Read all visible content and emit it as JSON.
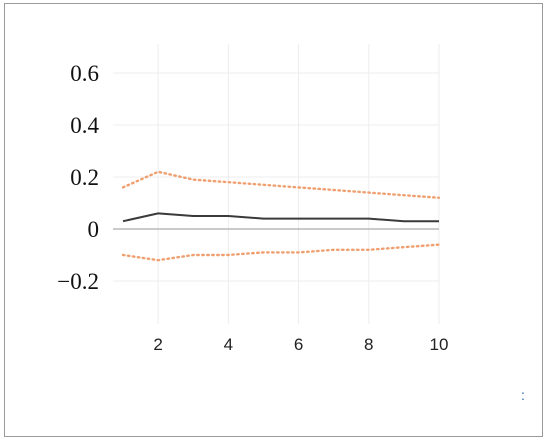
{
  "chart_data": {
    "type": "line",
    "title": "",
    "xlabel": "",
    "ylabel": "",
    "xlim": [
      1,
      10
    ],
    "ylim": [
      -0.3,
      0.7
    ],
    "x_ticks": [
      "2",
      "4",
      "6",
      "8",
      "10"
    ],
    "y_ticks": [
      "0.6",
      "0.4",
      "0.2",
      "0",
      "−0.2"
    ],
    "grid": true,
    "x": [
      1,
      2,
      3,
      4,
      5,
      6,
      7,
      8,
      9,
      10
    ],
    "series": [
      {
        "name": "",
        "style": "solid",
        "color": "#3a3a3a",
        "values": [
          0.03,
          0.06,
          0.05,
          0.05,
          0.04,
          0.04,
          0.04,
          0.04,
          0.03,
          0.03
        ]
      },
      {
        "name": "",
        "style": "dotted",
        "color": "#f0a070",
        "values": [
          0.16,
          0.22,
          0.19,
          0.18,
          0.17,
          0.16,
          0.15,
          0.14,
          0.13,
          0.12
        ]
      },
      {
        "name": "",
        "style": "dotted",
        "color": "#f0a070",
        "values": [
          -0.1,
          -0.12,
          -0.1,
          -0.1,
          -0.09,
          -0.09,
          -0.08,
          -0.08,
          -0.07,
          -0.06
        ]
      }
    ]
  },
  "corner_mark": ":"
}
